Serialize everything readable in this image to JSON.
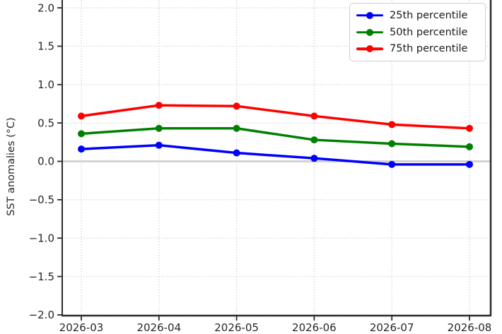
{
  "chart_data": {
    "type": "line",
    "x": [
      "2026-03",
      "2026-04",
      "2026-05",
      "2026-06",
      "2026-07",
      "2026-08"
    ],
    "series": [
      {
        "name": "25th percentile",
        "color": "#0000ff",
        "values": [
          0.16,
          0.21,
          0.11,
          0.04,
          -0.04,
          -0.04
        ]
      },
      {
        "name": "50th percentile",
        "color": "#008000",
        "values": [
          0.36,
          0.43,
          0.43,
          0.28,
          0.23,
          0.19
        ]
      },
      {
        "name": "75th percentile",
        "color": "#ff0000",
        "values": [
          0.59,
          0.73,
          0.72,
          0.59,
          0.48,
          0.43
        ]
      }
    ],
    "title": "",
    "xlabel": "",
    "ylabel": "SST anomalies (°C)",
    "ytick_labels": [
      "2.0",
      "1.5",
      "1.0",
      "0.5",
      "0.0",
      "−0.5",
      "−1.0",
      "−1.5",
      "−2.0"
    ],
    "ylim": [
      -2.0,
      2.1
    ],
    "grid": true,
    "grid_style": "dotted",
    "legend_position": "upper right",
    "zero_line": true,
    "colors": {
      "grid": "#c8c8c8",
      "zero_line": "#d3d3d3",
      "axis": "#2b2b2b",
      "tick_label": "#262626"
    }
  }
}
